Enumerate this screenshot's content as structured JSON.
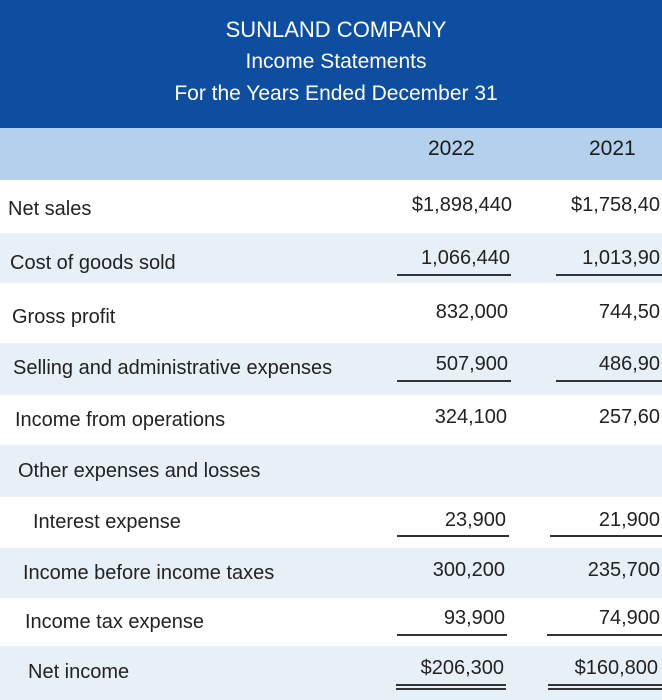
{
  "header": {
    "company": "SUNLAND COMPANY",
    "statement": "Income Statements",
    "period": "For the Years Ended December 31"
  },
  "columns": [
    "2022",
    "2021"
  ],
  "rows": [
    {
      "label": "Net sales",
      "values": [
        "$1,898,440",
        "$1,758,40"
      ]
    },
    {
      "label": "Cost of goods sold",
      "values": [
        "1,066,440",
        "1,013,90"
      ]
    },
    {
      "label": "Gross profit",
      "values": [
        "832,000",
        "744,50"
      ]
    },
    {
      "label": "Selling and administrative expenses",
      "values": [
        "507,900",
        "486,90"
      ]
    },
    {
      "label": "Income from operations",
      "values": [
        "324,100",
        "257,60"
      ]
    },
    {
      "label": "Other expenses and losses",
      "values": [
        "",
        ""
      ]
    },
    {
      "label": "Interest expense",
      "values": [
        "23,900",
        "21,900"
      ]
    },
    {
      "label": "Income before income taxes",
      "values": [
        "300,200",
        "235,700"
      ]
    },
    {
      "label": "Income tax expense",
      "values": [
        "93,900",
        "74,900"
      ]
    },
    {
      "label": "Net income",
      "values": [
        "$206,300",
        "$160,800"
      ]
    }
  ],
  "colors": {
    "title_bg": "#0d4ea0",
    "header_band": "#b3d1ed",
    "row_shade": "#e7eff7"
  }
}
